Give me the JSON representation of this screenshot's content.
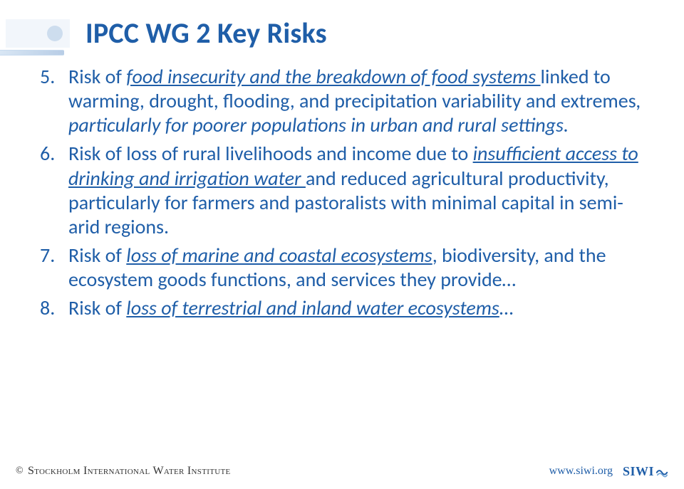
{
  "colors": {
    "title": "#1f5ea8",
    "body": "#1f5ea8",
    "bullet_band_bg": "#f2f6fb",
    "bullet_dot": "#cdddee",
    "url": "#1f5ea8",
    "siwi": "#1f5ea8",
    "copyright": "#333333"
  },
  "title": "IPCC WG 2 Key Risks",
  "items": [
    {
      "num": "5.",
      "runs": [
        {
          "t": "Risk of "
        },
        {
          "t": "food insecurity and the breakdown of food systems ",
          "cls": "u"
        },
        {
          "t": "linked to warming, drought, flooding, and precipitation variability and extremes"
        },
        {
          "t": ", particularly for poorer populations in urban and rural settings.",
          "cls": "i"
        }
      ]
    },
    {
      "num": "6.",
      "runs": [
        {
          "t": "Risk of loss of rural livelihoods and income due to "
        },
        {
          "t": "insufficient access to drinking and irrigation water ",
          "cls": "u"
        },
        {
          "t": "and reduced agricultural productivity, particularly for farmers and pastoralists with minimal capital in semi-arid regions."
        }
      ]
    },
    {
      "num": "7.",
      "runs": [
        {
          "t": "Risk of "
        },
        {
          "t": "loss of marine and coastal ecosystems",
          "cls": "u"
        },
        {
          "t": ", biodiversity, and the ecosystem goods functions, and services they provide…"
        }
      ]
    },
    {
      "num": "8.",
      "runs": [
        {
          "t": "Risk of "
        },
        {
          "t": "loss of terrestrial and inland water ecosystems",
          "cls": "u"
        },
        {
          "t": "…"
        }
      ]
    }
  ],
  "footer": {
    "copyright_symbol": "©",
    "org_name": "Stockholm International Water Institute",
    "url": "www.siwi.org",
    "logo_text": "SIWI"
  }
}
